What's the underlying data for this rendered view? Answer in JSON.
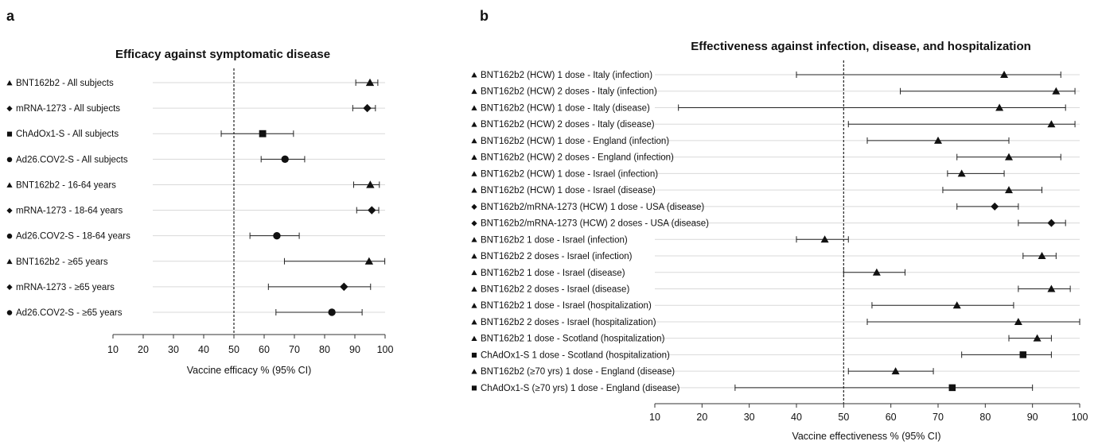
{
  "panels": {
    "a": "a",
    "b": "b"
  },
  "chart_data": [
    {
      "type": "forest",
      "title": "Efficacy against symptomatic disease",
      "xlabel": "Vaccine efficacy % (95% CI)",
      "xlim": [
        10,
        100
      ],
      "xticks": [
        10,
        20,
        30,
        40,
        50,
        60,
        70,
        80,
        90,
        100
      ],
      "reference_line": 50,
      "rows": [
        {
          "label": "BNT162b2 - All subjects",
          "marker": "triangle",
          "estimate": 95,
          "ci": [
            90.3,
            97.6
          ]
        },
        {
          "label": "mRNA-1273 - All subjects",
          "marker": "diamond",
          "estimate": 94.1,
          "ci": [
            89.3,
            96.8
          ]
        },
        {
          "label": "ChAdOx1-S - All subjects",
          "marker": "square",
          "estimate": 59.5,
          "ci": [
            45.8,
            69.7
          ]
        },
        {
          "label": "Ad26.COV2-S - All subjects",
          "marker": "circle",
          "estimate": 66.9,
          "ci": [
            59.0,
            73.4
          ]
        },
        {
          "label": "BNT162b2 - 16-64 years",
          "marker": "triangle",
          "estimate": 95.1,
          "ci": [
            89.6,
            98.1
          ]
        },
        {
          "label": "mRNA-1273 - 18-64 years",
          "marker": "diamond",
          "estimate": 95.6,
          "ci": [
            90.6,
            97.9
          ]
        },
        {
          "label": "Ad26.COV2-S - 18-64 years",
          "marker": "circle",
          "estimate": 64.2,
          "ci": [
            55.3,
            71.6
          ]
        },
        {
          "label": "BNT162b2 - ≥65 years",
          "marker": "triangle",
          "estimate": 94.7,
          "ci": [
            66.7,
            99.9
          ]
        },
        {
          "label": "mRNA-1273 - ≥65 years",
          "marker": "diamond",
          "estimate": 86.4,
          "ci": [
            61.4,
            95.2
          ]
        },
        {
          "label": "Ad26.COV2-S - ≥65 years",
          "marker": "circle",
          "estimate": 82.4,
          "ci": [
            63.9,
            92.4
          ]
        }
      ]
    },
    {
      "type": "forest",
      "title": "Effectiveness against infection, disease, and hospitalization",
      "xlabel": "Vaccine effectiveness % (95% CI)",
      "xlim": [
        10,
        100
      ],
      "xticks": [
        10,
        20,
        30,
        40,
        50,
        60,
        70,
        80,
        90,
        100
      ],
      "reference_line": 50,
      "rows": [
        {
          "label": "BNT162b2 (HCW) 1 dose - Italy (infection)",
          "marker": "triangle",
          "estimate": 84,
          "ci": [
            40,
            96
          ]
        },
        {
          "label": "BNT162b2 (HCW) 2 doses - Italy (infection)",
          "marker": "triangle",
          "estimate": 95,
          "ci": [
            62,
            99
          ]
        },
        {
          "label": "BNT162b2 (HCW) 1 dose - Italy (disease)",
          "marker": "triangle",
          "estimate": 83,
          "ci": [
            15,
            97
          ]
        },
        {
          "label": "BNT162b2 (HCW) 2 doses - Italy (disease)",
          "marker": "triangle",
          "estimate": 94,
          "ci": [
            51,
            99
          ]
        },
        {
          "label": "BNT162b2 (HCW) 1 dose - England (infection)",
          "marker": "triangle",
          "estimate": 70,
          "ci": [
            55,
            85
          ]
        },
        {
          "label": "BNT162b2 (HCW) 2 doses - England (infection)",
          "marker": "triangle",
          "estimate": 85,
          "ci": [
            74,
            96
          ]
        },
        {
          "label": "BNT162b2 (HCW) 1 dose - Israel (infection)",
          "marker": "triangle",
          "estimate": 75,
          "ci": [
            72,
            84
          ]
        },
        {
          "label": "BNT162b2 (HCW) 1 dose - Israel (disease)",
          "marker": "triangle",
          "estimate": 85,
          "ci": [
            71,
            92
          ]
        },
        {
          "label": "BNT162b2/mRNA-1273 (HCW) 1 dose - USA (disease)",
          "marker": "diamond",
          "estimate": 82,
          "ci": [
            74,
            87
          ]
        },
        {
          "label": "BNT162b2/mRNA-1273 (HCW) 2 doses - USA (disease)",
          "marker": "diamond",
          "estimate": 94,
          "ci": [
            87,
            97
          ]
        },
        {
          "label": "BNT162b2 1 dose - Israel (infection)",
          "marker": "triangle",
          "estimate": 46,
          "ci": [
            40,
            51
          ]
        },
        {
          "label": "BNT162b2 2 doses - Israel (infection)",
          "marker": "triangle",
          "estimate": 92,
          "ci": [
            88,
            95
          ]
        },
        {
          "label": "BNT162b2 1 dose - Israel (disease)",
          "marker": "triangle",
          "estimate": 57,
          "ci": [
            50,
            63
          ]
        },
        {
          "label": "BNT162b2 2 doses - Israel (disease)",
          "marker": "triangle",
          "estimate": 94,
          "ci": [
            87,
            98
          ]
        },
        {
          "label": "BNT162b2 1 dose - Israel (hospitalization)",
          "marker": "triangle",
          "estimate": 74,
          "ci": [
            56,
            86
          ]
        },
        {
          "label": "BNT162b2 2 doses - Israel (hospitalization)",
          "marker": "triangle",
          "estimate": 87,
          "ci": [
            55,
            100
          ]
        },
        {
          "label": "BNT162b2 1 dose - Scotland (hospitalization)",
          "marker": "triangle",
          "estimate": 91,
          "ci": [
            85,
            94
          ]
        },
        {
          "label": "ChAdOx1-S 1 dose - Scotland (hospitalization)",
          "marker": "square",
          "estimate": 88,
          "ci": [
            75,
            94
          ]
        },
        {
          "label": "BNT162b2 (≥70 yrs) 1 dose - England (disease)",
          "marker": "triangle",
          "estimate": 61,
          "ci": [
            51,
            69
          ]
        },
        {
          "label": "ChAdOx1-S (≥70 yrs) 1 dose - England (disease)",
          "marker": "square",
          "estimate": 73,
          "ci": [
            27,
            90
          ]
        }
      ]
    }
  ]
}
